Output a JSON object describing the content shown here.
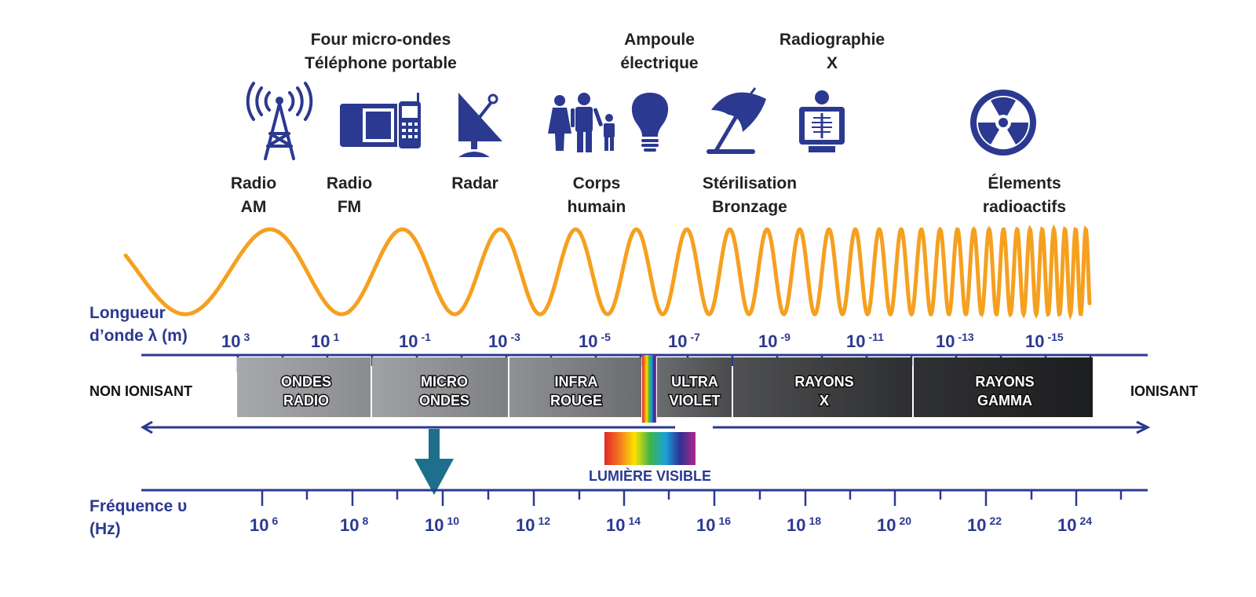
{
  "applications": [
    {
      "id": "radio-am",
      "text": "Radio\nAM"
    },
    {
      "id": "radio-fm",
      "text": "Radio\nFM"
    },
    {
      "id": "micro-ondes",
      "text": "Four micro-ondes\nTéléphone portable"
    },
    {
      "id": "radar",
      "text": "Radar"
    },
    {
      "id": "corps",
      "text": "Corps\nhumain"
    },
    {
      "id": "ampoule",
      "text": "Ampoule\nélectrique"
    },
    {
      "id": "sterilisation",
      "text": "Stérilisation\nBronzage"
    },
    {
      "id": "radiographie",
      "text": "Radiographie\nX"
    },
    {
      "id": "radioactifs",
      "text": "Élements\nradioactifs"
    }
  ],
  "icons": [
    "radio-tower-icon",
    "mobile-phone-icon",
    "satellite-dish-icon",
    "family-icon",
    "light-bulb-icon",
    "beach-umbrella-icon",
    "x-ray-icon",
    "radiation-icon"
  ],
  "wavelength": {
    "title": "Longueur\nd’onde λ (m)",
    "ticks": [
      {
        "base": "10",
        "exp": "3"
      },
      {
        "base": "10",
        "exp": "1"
      },
      {
        "base": "10",
        "exp": "-1"
      },
      {
        "base": "10",
        "exp": "-3"
      },
      {
        "base": "10",
        "exp": "-5"
      },
      {
        "base": "10",
        "exp": "-7"
      },
      {
        "base": "10",
        "exp": "-9"
      },
      {
        "base": "10",
        "exp": "-11"
      },
      {
        "base": "10",
        "exp": "-13"
      },
      {
        "base": "10",
        "exp": "-15"
      }
    ]
  },
  "bands": [
    {
      "line1": "ONDES",
      "line2": "RADIO"
    },
    {
      "line1": "MICRO",
      "line2": "ONDES"
    },
    {
      "line1": "INFRA",
      "line2": "ROUGE"
    },
    {
      "line1": "ULTRA",
      "line2": "VIOLET"
    },
    {
      "line1": "RAYONS",
      "line2": "X"
    },
    {
      "line1": "RAYONS",
      "line2": "GAMMA"
    }
  ],
  "non_ionisant": "NON IONISANT",
  "ionisant": "IONISANT",
  "visible_light": "LUMIÈRE VISIBLE",
  "frequency": {
    "title": "Fréquence υ\n(Hz)",
    "ticks": [
      {
        "base": "10",
        "exp": "6"
      },
      {
        "base": "10",
        "exp": "8"
      },
      {
        "base": "10",
        "exp": "10"
      },
      {
        "base": "10",
        "exp": "12"
      },
      {
        "base": "10",
        "exp": "14"
      },
      {
        "base": "10",
        "exp": "16"
      },
      {
        "base": "10",
        "exp": "18"
      },
      {
        "base": "10",
        "exp": "20"
      },
      {
        "base": "10",
        "exp": "22"
      },
      {
        "base": "10",
        "exp": "24"
      }
    ]
  },
  "colors": {
    "navy": "#2b3990",
    "wave": "#f5a01f",
    "teal": "#1d6f8c"
  }
}
